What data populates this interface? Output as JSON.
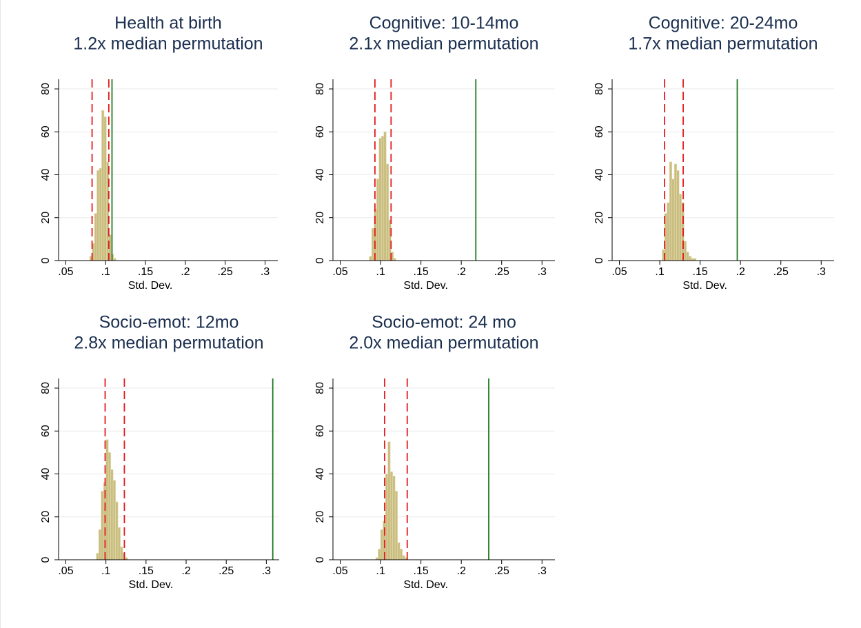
{
  "chart_data": [
    {
      "type": "histogram",
      "title": "Health at birth",
      "subtitle": "1.2x median permutation",
      "xlabel": "Std. Dev.",
      "bins": [
        0.08,
        0.083,
        0.086,
        0.089,
        0.092,
        0.095,
        0.098,
        0.101,
        0.104,
        0.107,
        0.11,
        0.113
      ],
      "counts": [
        2,
        8,
        22,
        42,
        43,
        70,
        67,
        46,
        12,
        3,
        1
      ],
      "ci_lines": [
        0.083,
        0.104
      ],
      "observed_line": 0.108,
      "xlim": [
        0.041,
        0.316
      ],
      "ylim": [
        0,
        84.5
      ],
      "xticks": [
        {
          "value": 0.05,
          "label": ".05"
        },
        {
          "value": 0.1,
          "label": ".1"
        },
        {
          "value": 0.15,
          "label": ".15"
        },
        {
          "value": 0.2,
          "label": ".2"
        },
        {
          "value": 0.25,
          "label": ".25"
        },
        {
          "value": 0.3,
          "label": ".3"
        }
      ],
      "yticks": [
        0,
        20,
        40,
        60,
        80
      ],
      "grid": true,
      "color": "#c9bd80",
      "ci_color": "#e3191c",
      "observed_color": "#1f7a1f"
    },
    {
      "type": "histogram",
      "title": "Cognitive: 10-14mo",
      "subtitle": "2.1x median permutation",
      "xlabel": "Std. Dev.",
      "bins": [
        0.086,
        0.089,
        0.092,
        0.095,
        0.098,
        0.101,
        0.104,
        0.107,
        0.11,
        0.113,
        0.116,
        0.119
      ],
      "counts": [
        2,
        15,
        24,
        38,
        57,
        58,
        60,
        45,
        19,
        4,
        1
      ],
      "ci_lines": [
        0.093,
        0.113
      ],
      "observed_line": 0.218,
      "xlim": [
        0.041,
        0.316
      ],
      "ylim": [
        0,
        84.5
      ],
      "xticks": [
        {
          "value": 0.05,
          "label": ".05"
        },
        {
          "value": 0.1,
          "label": ".1"
        },
        {
          "value": 0.15,
          "label": ".15"
        },
        {
          "value": 0.2,
          "label": ".2"
        },
        {
          "value": 0.25,
          "label": ".25"
        },
        {
          "value": 0.3,
          "label": ".3"
        }
      ],
      "yticks": [
        0,
        20,
        40,
        60,
        80
      ],
      "grid": true,
      "color": "#c9bd80",
      "ci_color": "#e3191c",
      "observed_color": "#1f7a1f"
    },
    {
      "type": "histogram",
      "title": "Cognitive: 20-24mo",
      "subtitle": "1.7x median permutation",
      "xlabel": "Std. Dev.",
      "bins": [
        0.103,
        0.106,
        0.109,
        0.112,
        0.115,
        0.118,
        0.121,
        0.124,
        0.127,
        0.13,
        0.133,
        0.136,
        0.139,
        0.142,
        0.145
      ],
      "counts": [
        5,
        22,
        27,
        46,
        38,
        45,
        42,
        31,
        27,
        9,
        4,
        2,
        1,
        1
      ],
      "ci_lines": [
        0.106,
        0.129
      ],
      "observed_line": 0.196,
      "xlim": [
        0.041,
        0.316
      ],
      "ylim": [
        0,
        84.5
      ],
      "xticks": [
        {
          "value": 0.05,
          "label": ".05"
        },
        {
          "value": 0.1,
          "label": ".1"
        },
        {
          "value": 0.15,
          "label": ".15"
        },
        {
          "value": 0.2,
          "label": ".2"
        },
        {
          "value": 0.25,
          "label": ".25"
        },
        {
          "value": 0.3,
          "label": ".3"
        }
      ],
      "yticks": [
        0,
        20,
        40,
        60,
        80
      ],
      "grid": true,
      "color": "#c9bd80",
      "ci_color": "#e3191c",
      "observed_color": "#1f7a1f"
    },
    {
      "type": "histogram",
      "title": "Socio-emot: 12mo",
      "subtitle": "2.8x median permutation",
      "xlabel": "Std. Dev.",
      "bins": [
        0.088,
        0.091,
        0.094,
        0.097,
        0.1,
        0.103,
        0.106,
        0.109,
        0.112,
        0.115,
        0.118,
        0.121,
        0.124,
        0.127
      ],
      "counts": [
        3,
        14,
        32,
        36,
        56,
        50,
        42,
        37,
        27,
        15,
        6,
        3,
        1
      ],
      "ci_lines": [
        0.099,
        0.123
      ],
      "observed_line": 0.308,
      "xlim": [
        0.041,
        0.316
      ],
      "ylim": [
        0,
        84.5
      ],
      "xticks": [
        {
          "value": 0.05,
          "label": ".05"
        },
        {
          "value": 0.1,
          "label": ".1"
        },
        {
          "value": 0.15,
          "label": ".15"
        },
        {
          "value": 0.2,
          "label": ".2"
        },
        {
          "value": 0.25,
          "label": ".25"
        },
        {
          "value": 0.3,
          "label": ".3"
        }
      ],
      "yticks": [
        0,
        20,
        40,
        60,
        80
      ],
      "grid": true,
      "color": "#c9bd80",
      "ci_color": "#e3191c",
      "observed_color": "#1f7a1f"
    },
    {
      "type": "histogram",
      "title": "Socio-emot: 24 mo",
      "subtitle": "2.0x median permutation",
      "xlabel": "Std. Dev.",
      "bins": [
        0.094,
        0.097,
        0.1,
        0.103,
        0.106,
        0.109,
        0.112,
        0.115,
        0.118,
        0.121,
        0.124,
        0.127,
        0.13,
        0.133
      ],
      "counts": [
        1,
        5,
        14,
        18,
        40,
        55,
        41,
        39,
        32,
        8,
        5,
        2,
        1
      ],
      "ci_lines": [
        0.105,
        0.133
      ],
      "observed_line": 0.234,
      "xlim": [
        0.041,
        0.316
      ],
      "ylim": [
        0,
        84.5
      ],
      "xticks": [
        {
          "value": 0.05,
          "label": ".05"
        },
        {
          "value": 0.1,
          "label": ".1"
        },
        {
          "value": 0.15,
          "label": ".15"
        },
        {
          "value": 0.2,
          "label": ".2"
        },
        {
          "value": 0.25,
          "label": ".25"
        },
        {
          "value": 0.3,
          "label": ".3"
        }
      ],
      "yticks": [
        0,
        20,
        40,
        60,
        80
      ],
      "grid": true,
      "color": "#c9bd80",
      "ci_color": "#e3191c",
      "observed_color": "#1f7a1f"
    }
  ]
}
